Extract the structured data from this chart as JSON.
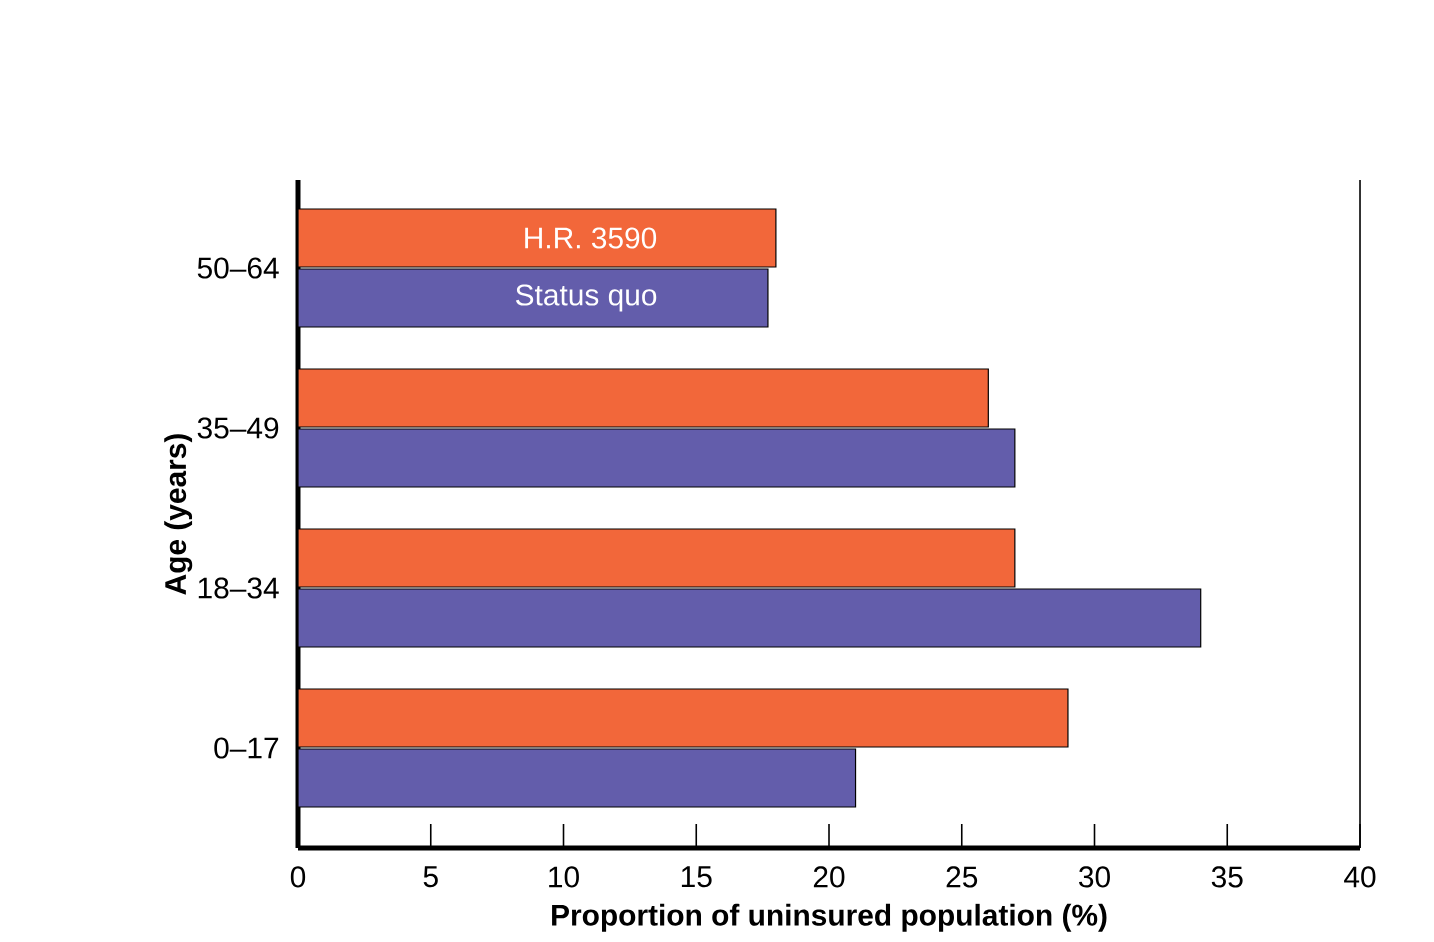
{
  "chart_data": {
    "type": "bar",
    "orientation": "horizontal",
    "xlabel": "Proportion of uninsured population (%)",
    "ylabel": "Age (years)",
    "categories": [
      "50–64",
      "35–49",
      "18–34",
      "0–17"
    ],
    "series": [
      {
        "name": "H.R. 3590",
        "color": "#f2673a",
        "values": [
          18,
          26,
          27,
          29
        ]
      },
      {
        "name": "Status quo",
        "color": "#635dab",
        "values": [
          17.7,
          27,
          34,
          21
        ]
      }
    ],
    "xlim": [
      0,
      40
    ],
    "xticks": [
      0,
      5,
      10,
      15,
      20,
      25,
      30,
      35,
      40
    ]
  }
}
